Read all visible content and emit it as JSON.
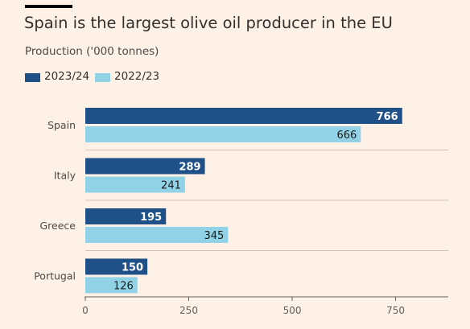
{
  "header": {
    "title": "Spain is the largest olive oil producer in the EU",
    "subtitle": "Production ('000 tonnes)"
  },
  "legend": [
    {
      "label": "2023/24",
      "color": "#1f5088"
    },
    {
      "label": "2022/23",
      "color": "#92d2e6"
    }
  ],
  "chart_data": {
    "type": "bar",
    "orientation": "horizontal",
    "title": "Spain is the largest olive oil producer in the EU",
    "subtitle": "Production ('000 tonnes)",
    "categories": [
      "Spain",
      "Italy",
      "Greece",
      "Portugal"
    ],
    "series": [
      {
        "name": "2023/24",
        "color": "#1f5088",
        "values": [
          766,
          289,
          195,
          150
        ]
      },
      {
        "name": "2022/23",
        "color": "#92d2e6",
        "values": [
          666,
          241,
          345,
          126
        ]
      }
    ],
    "xlim": [
      0,
      830
    ],
    "xticks": [
      0,
      250,
      500,
      750
    ],
    "xlabel": "",
    "ylabel": "",
    "grid": "horizontal separators between categories",
    "legend_position": "top-left"
  }
}
